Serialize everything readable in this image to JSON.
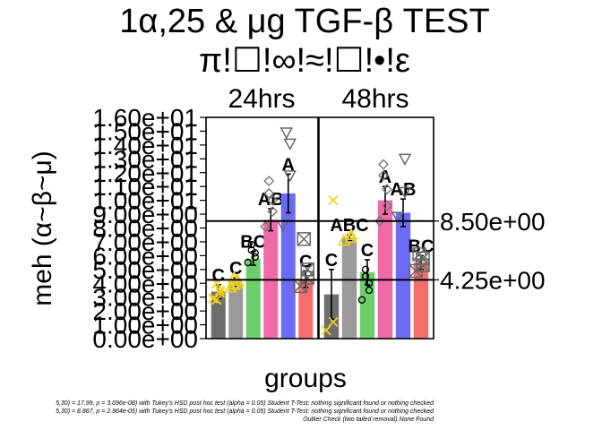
{
  "chart_data": {
    "type": "bar",
    "title": "1α,25 & μg TGF-β TEST",
    "subtitle": "π!☐!∞!≈!☐!•!ε",
    "xlabel": "groups",
    "ylabel": "meh (α~β~μ)",
    "ylim": [
      0,
      16
    ],
    "y_ticks": [
      "0.00e+00",
      "1.00e+00",
      "2.00e+00",
      "3.00e+00",
      "4.00e+00",
      "5.00e+00",
      "6.00e+00",
      "7.00e+00",
      "8.00e+00",
      "9.00e+00",
      "1.00e+01",
      "1.10e+01",
      "1.20e+01",
      "1.30e+01",
      "1.40e+01",
      "1.50e+01",
      "1.60e+01"
    ],
    "reference_lines": [
      {
        "value": 8.5,
        "label": "8.50e+00"
      },
      {
        "value": 4.25,
        "label": "4.25e+00"
      }
    ],
    "bar_colors": [
      "#6e6e6e",
      "#9a9a9a",
      "#6ccf6c",
      "#f06aa8",
      "#6b6bf5",
      "#f56e6e"
    ],
    "panels": [
      {
        "label": "24hrs",
        "bars": [
          {
            "value": 3.4,
            "err": 0.5,
            "letter": "C",
            "marker": "x",
            "points": [
              2.9,
              3.3,
              3.5,
              4.0,
              2.8
            ]
          },
          {
            "value": 4.0,
            "err": 0.4,
            "letter": "C",
            "marker": "triangle",
            "points": [
              3.7,
              4.0,
              4.2,
              4.4,
              3.9
            ]
          },
          {
            "value": 5.8,
            "err": 0.5,
            "letter": "BC",
            "marker": "circle",
            "points": [
              5.5,
              5.9,
              6.2,
              6.4,
              6.8
            ]
          },
          {
            "value": 8.6,
            "err": 0.8,
            "letter": "AB",
            "marker": "diamond",
            "points": [
              8.1,
              9.2,
              10.0,
              10.5,
              11.4
            ]
          },
          {
            "value": 10.5,
            "err": 1.4,
            "letter": "A",
            "marker": "triangle-down",
            "points": [
              8.2,
              11.8,
              14.1,
              14.9
            ]
          },
          {
            "value": 4.3,
            "err": 0.6,
            "letter": "C",
            "marker": "square-x",
            "points": [
              3.8,
              4.4,
              5.0,
              7.2
            ]
          }
        ]
      },
      {
        "label": "48hrs",
        "bars": [
          {
            "value": 3.2,
            "err": 1.8,
            "letter": "C",
            "marker": "x",
            "points": [
              0.6,
              1.2,
              10.0
            ]
          },
          {
            "value": 7.3,
            "err": 0.2,
            "letter": "ABC",
            "marker": "triangle",
            "points": [
              7.1,
              7.3,
              7.5
            ]
          },
          {
            "value": 4.8,
            "err": 0.9,
            "letter": "C",
            "marker": "circle",
            "points": [
              2.8,
              3.5,
              4.0,
              4.5,
              5.0
            ]
          },
          {
            "value": 10.0,
            "err": 1.0,
            "letter": "A",
            "marker": "diamond",
            "points": [
              8.5,
              9.6,
              10.8,
              11.8,
              12.6
            ]
          },
          {
            "value": 9.1,
            "err": 1.0,
            "letter": "AB",
            "marker": "triangle-down",
            "points": [
              8.8,
              10.6,
              13.0
            ]
          },
          {
            "value": 5.5,
            "err": 0.5,
            "letter": "BC",
            "marker": "square-x",
            "points": [
              4.9,
              5.3,
              5.8,
              6.1
            ]
          }
        ]
      }
    ]
  },
  "footnotes": [
    "5,30) = 17.99, p = 3.096e-08) with Tukey's HSD post hoc test (alpha = 0.05) Student T-Test: nothing significant found or nothing checked",
    "5,30) = 8.867, p = 2.964e-05) with Tukey's HSD post hoc test (alpha = 0.05) Student T-Test: nothing significant found or nothing checked",
    "Outlier Check (two tailed removal) None Found"
  ]
}
